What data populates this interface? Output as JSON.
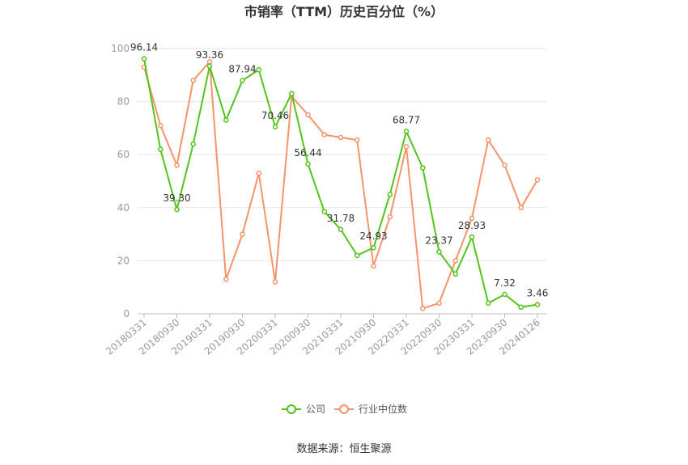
{
  "chart_data": {
    "type": "line",
    "title": "市销率（TTM）历史百分位（%）",
    "xlabel": "",
    "ylabel": "",
    "ylim": [
      0,
      100
    ],
    "yticks": [
      0,
      20,
      40,
      60,
      80,
      100
    ],
    "grid": true,
    "legend_position": "bottom",
    "x_tick_labels": [
      "20180331",
      "20180930",
      "20190331",
      "20190930",
      "20200331",
      "20200930",
      "20210331",
      "20210930",
      "20220331",
      "20220930",
      "20230331",
      "20230930",
      "20240126"
    ],
    "series": [
      {
        "name": "公司",
        "color": "#52c41a",
        "values": [
          96.14,
          62.0,
          39.3,
          64.0,
          93.36,
          73.0,
          87.94,
          92.0,
          70.46,
          83.0,
          56.44,
          38.5,
          31.78,
          22.0,
          24.93,
          45.0,
          68.77,
          55.0,
          23.37,
          15.0,
          28.93,
          4.0,
          7.32,
          2.5,
          3.46
        ],
        "labels": {
          "0": "96.14",
          "2": "39.30",
          "4": "93.36",
          "6": "87.94",
          "8": "70.46",
          "10": "56.44",
          "12": "31.78",
          "14": "24.93",
          "16": "68.77",
          "18": "23.37",
          "20": "28.93",
          "22": "7.32",
          "24": "3.46"
        }
      },
      {
        "name": "行业中位数",
        "color": "#f4946a",
        "values": [
          93.0,
          71.0,
          56.0,
          88.0,
          95.0,
          13.0,
          30.0,
          53.0,
          12.0,
          82.0,
          75.0,
          67.5,
          66.5,
          65.5,
          18.0,
          36.5,
          63.0,
          2.0,
          4.0,
          20.0,
          36.0,
          65.5,
          56.0,
          40.0,
          50.5
        ]
      }
    ]
  },
  "legend": {
    "company": "公司",
    "industry": "行业中位数"
  },
  "source": "数据来源：恒生聚源"
}
